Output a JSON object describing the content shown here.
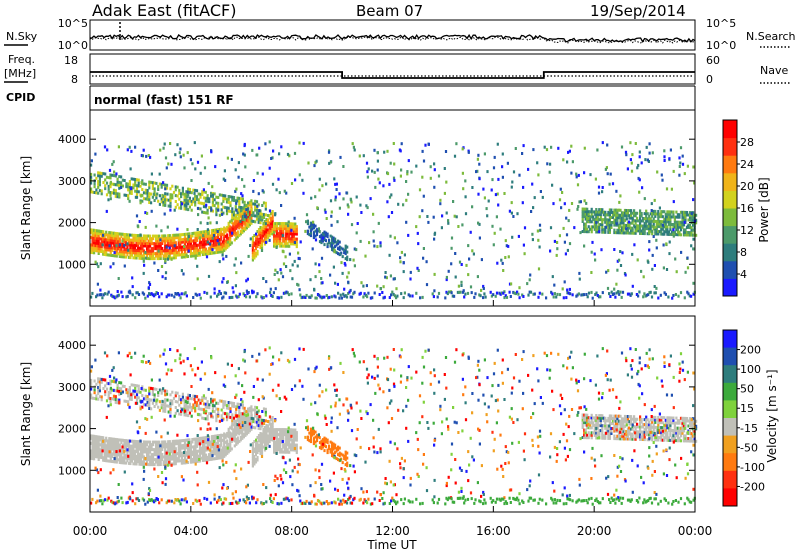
{
  "header": {
    "title": "Adak East (fitACF)",
    "beam": "Beam 07",
    "date": "19/Sep/2014"
  },
  "top_panels": {
    "nsky_label": "N.Sky",
    "nsearch_label": "N.Search",
    "noise_ticks": [
      "10^5",
      "10^0"
    ],
    "freq_label": "Freq.",
    "freq_unit": "[MHz]",
    "freq_ticks": [
      "18",
      "8"
    ],
    "nave_label": "Nave",
    "nave_ticks": [
      "60",
      "0"
    ],
    "cpid_label": "CPID",
    "cpid_text": "normal (fast) 151 RF"
  },
  "time_axis": {
    "title": "Time UT",
    "ticks": [
      "00:00",
      "04:00",
      "08:00",
      "12:00",
      "16:00",
      "20:00",
      "00:00"
    ]
  },
  "colors": {
    "power_scale": [
      "#1a1aff",
      "#1f4fb0",
      "#2e7d7d",
      "#4c9a6a",
      "#7dbb3c",
      "#d2d21e",
      "#f0b419",
      "#ff7a10",
      "#ff3010",
      "#ff0000"
    ],
    "velocity_scale": [
      "#1a1aff",
      "#1f4fb0",
      "#2e7d7d",
      "#3caa3c",
      "#7fd23c",
      "#c0c0b8",
      "#f0a020",
      "#ff7a10",
      "#ff3010",
      "#ff0000"
    ],
    "ground_scatter": "#c0c0b8"
  },
  "chart_data": [
    {
      "type": "heatmap",
      "name": "power",
      "ylabel": "Slant Range [km]",
      "yticks": [
        1000,
        2000,
        3000,
        4000
      ],
      "ylim": [
        0,
        4700
      ],
      "xlim": [
        0,
        24
      ],
      "colorbar_label": "Power [dB]",
      "colorbar_ticks": [
        4,
        8,
        12,
        16,
        20,
        24,
        28
      ],
      "colorbar_range": [
        0,
        32
      ]
    },
    {
      "type": "heatmap",
      "name": "velocity",
      "ylabel": "Slant Range [km]",
      "yticks": [
        1000,
        2000,
        3000,
        4000
      ],
      "ylim": [
        0,
        4700
      ],
      "xlim": [
        0,
        24
      ],
      "colorbar_label": "Velocity [m s⁻¹]",
      "colorbar_ticks": [
        "200",
        "100",
        "50",
        "15",
        "-15",
        "-50",
        "-100",
        "-200"
      ]
    },
    {
      "type": "line",
      "name": "frequency",
      "x": [
        0,
        10,
        10,
        18,
        18,
        24
      ],
      "y": [
        12,
        12,
        10,
        10,
        12,
        12
      ],
      "ylim": [
        8,
        18
      ]
    }
  ]
}
